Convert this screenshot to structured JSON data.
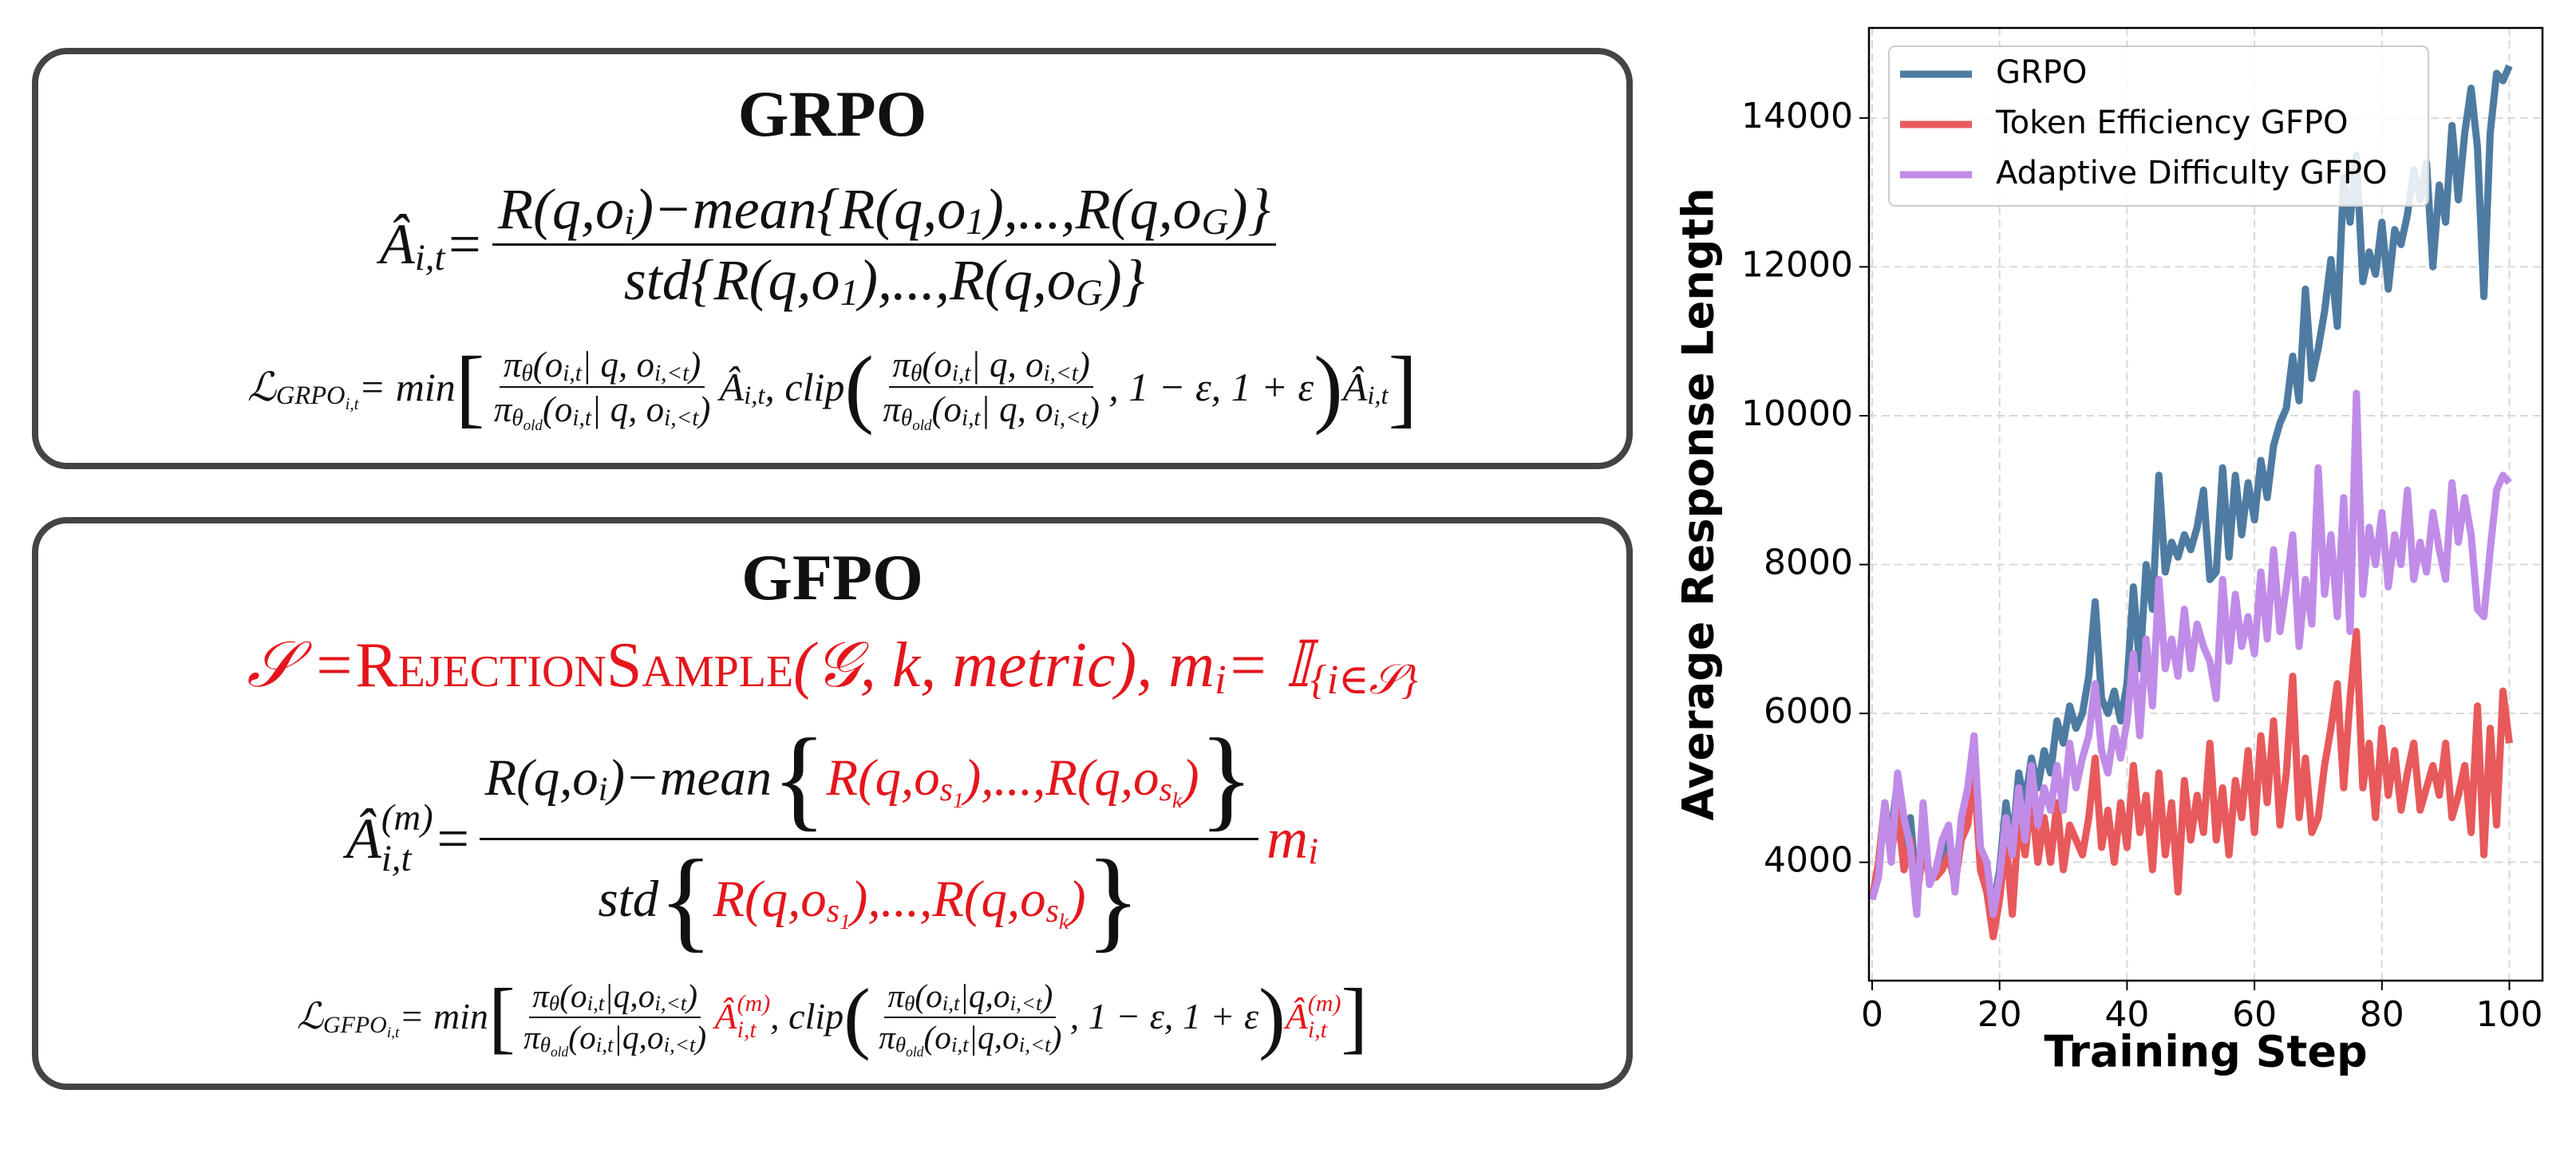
{
  "grpo_box": {
    "title": "GRPO",
    "equations": [
      [
        "Â",
        {
          "sub": [
            "i,t"
          ]
        },
        " = ",
        {
          "frac": {
            "num": [
              "R(q,o",
              {
                "sub": [
                  "i"
                ]
              },
              ")−mean{R(q,o",
              {
                "sub": [
                  "1"
                ]
              },
              "),...,R(q,o",
              {
                "sub": [
                  "G"
                ]
              },
              ")}"
            ],
            "den": [
              "std{R(q,o",
              {
                "sub": [
                  "1"
                ]
              },
              "),...,R(q,o",
              {
                "sub": [
                  "G"
                ]
              },
              ")}"
            ]
          }
        }
      ],
      [
        "ℒ",
        {
          "sub": [
            "GRPO",
            {
              "sub": [
                "i,t"
              ]
            }
          ]
        },
        " = min",
        {
          "big": "["
        },
        {
          "frac": {
            "num": [
              "π",
              {
                "sub": [
                  "θ"
                ]
              },
              "(o",
              {
                "sub": [
                  "i,t"
                ]
              },
              " | q, o",
              {
                "sub": [
                  "i,<t"
                ]
              },
              ")"
            ],
            "den": [
              "π",
              {
                "sub": [
                  "θ",
                  {
                    "sub": [
                      "old"
                    ]
                  }
                ]
              },
              "(o",
              {
                "sub": [
                  "i,t"
                ]
              },
              " | q, o",
              {
                "sub": [
                  "i,<t"
                ]
              },
              ")"
            ]
          }
        },
        " Â",
        {
          "sub": [
            "i,t"
          ]
        },
        ", clip",
        {
          "big": "("
        },
        {
          "frac": {
            "num": [
              "π",
              {
                "sub": [
                  "θ"
                ]
              },
              "(o",
              {
                "sub": [
                  "i,t"
                ]
              },
              " | q, o",
              {
                "sub": [
                  "i,<t"
                ]
              },
              ")"
            ],
            "den": [
              "π",
              {
                "sub": [
                  "θ",
                  {
                    "sub": [
                      "old"
                    ]
                  }
                ]
              },
              "(o",
              {
                "sub": [
                  "i,t"
                ]
              },
              " | q, o",
              {
                "sub": [
                  "i,<t"
                ]
              },
              ")"
            ]
          }
        },
        ", 1 − ε, 1 + ε",
        {
          "big": ")"
        },
        "Â",
        {
          "sub": [
            "i,t"
          ]
        },
        {
          "big": "]"
        }
      ]
    ]
  },
  "gfpo_box": {
    "title": "GFPO",
    "equations": [
      [
        {
          "color": "#e4161c",
          "tokens": [
            "𝒮 = ",
            {
              "smallcaps": "RejectionSample"
            },
            "(𝒢, k, metric),  m",
            {
              "sub": [
                "i"
              ]
            },
            " = 𝕀",
            {
              "sub": [
                "{i∈𝒮}"
              ]
            }
          ]
        }
      ],
      [
        "Â",
        {
          "sub": [
            "i,t"
          ],
          "sup": [
            "(m)"
          ]
        },
        " = ",
        {
          "frac": {
            "num": [
              "R(q,o",
              {
                "sub": [
                  "i"
                ]
              },
              ")−mean",
              {
                "big": "{"
              },
              {
                "color": "#e4161c",
                "tokens": [
                  "R(q,o",
                  {
                    "sub": [
                      "s",
                      {
                        "sub": [
                          "1"
                        ]
                      }
                    ]
                  },
                  "),...,R(q,o",
                  {
                    "sub": [
                      "s",
                      {
                        "sub": [
                          "k"
                        ]
                      }
                    ]
                  },
                  ")"
                ]
              },
              {
                "big": "}"
              }
            ],
            "den": [
              "std",
              {
                "big": "{"
              },
              {
                "color": "#e4161c",
                "tokens": [
                  "R(q,o",
                  {
                    "sub": [
                      "s",
                      {
                        "sub": [
                          "1"
                        ]
                      }
                    ]
                  },
                  "),...,R(q,o",
                  {
                    "sub": [
                      "s",
                      {
                        "sub": [
                          "k"
                        ]
                      }
                    ]
                  },
                  ")"
                ]
              },
              {
                "big": "}"
              }
            ]
          }
        },
        {
          "color": "#e4161c",
          "tokens": [
            "m",
            {
              "sub": [
                "i"
              ]
            }
          ]
        }
      ],
      [
        "ℒ",
        {
          "sub": [
            "GFPO",
            {
              "sub": [
                "i,t"
              ]
            }
          ]
        },
        " = min",
        {
          "big": "["
        },
        {
          "frac": {
            "num": [
              "π",
              {
                "sub": [
                  "θ"
                ]
              },
              "(o",
              {
                "sub": [
                  "i,t"
                ]
              },
              "|q,o",
              {
                "sub": [
                  "i,<t"
                ]
              },
              ")"
            ],
            "den": [
              "π",
              {
                "sub": [
                  "θ",
                  {
                    "sub": [
                      "old"
                    ]
                  }
                ]
              },
              "(o",
              {
                "sub": [
                  "i,t"
                ]
              },
              "|q,o",
              {
                "sub": [
                  "i,<t"
                ]
              },
              ")"
            ]
          }
        },
        {
          "color": "#e4161c",
          "tokens": [
            " Â",
            {
              "sub": [
                "i,t"
              ],
              "sup": [
                "(m)"
              ]
            }
          ]
        },
        ", clip",
        {
          "big": "("
        },
        {
          "frac": {
            "num": [
              "π",
              {
                "sub": [
                  "θ"
                ]
              },
              "(o",
              {
                "sub": [
                  "i,t"
                ]
              },
              "|q,o",
              {
                "sub": [
                  "i,<t"
                ]
              },
              ")"
            ],
            "den": [
              "π",
              {
                "sub": [
                  "θ",
                  {
                    "sub": [
                      "old"
                    ]
                  }
                ]
              },
              "(o",
              {
                "sub": [
                  "i,t"
                ]
              },
              "|q,o",
              {
                "sub": [
                  "i,<t"
                ]
              },
              ")"
            ]
          }
        },
        ", 1 − ε, 1 + ε",
        {
          "big": ")"
        },
        {
          "color": "#e4161c",
          "tokens": [
            "Â",
            {
              "sub": [
                "i,t"
              ],
              "sup": [
                "(m)"
              ]
            }
          ]
        },
        {
          "big": "]"
        }
      ]
    ]
  },
  "chart_data": {
    "type": "line",
    "x_label": "Training Step",
    "y_label": "Average Response Length",
    "xlim": [
      -0.5,
      105.2
    ],
    "ylim": [
      2410,
      15210
    ],
    "xticks": [
      0,
      20,
      40,
      60,
      80,
      100
    ],
    "yticks": [
      4000,
      6000,
      8000,
      10000,
      12000,
      14000
    ],
    "grid": true,
    "legend": "upper left",
    "x": [
      0,
      1,
      2,
      3,
      4,
      5,
      6,
      7,
      8,
      9,
      10,
      11,
      12,
      13,
      14,
      15,
      16,
      17,
      18,
      19,
      20,
      21,
      22,
      23,
      24,
      25,
      26,
      27,
      28,
      29,
      30,
      31,
      32,
      33,
      34,
      35,
      36,
      37,
      38,
      39,
      40,
      41,
      42,
      43,
      44,
      45,
      46,
      47,
      48,
      49,
      50,
      51,
      52,
      53,
      54,
      55,
      56,
      57,
      58,
      59,
      60,
      61,
      62,
      63,
      64,
      65,
      66,
      67,
      68,
      69,
      70,
      71,
      72,
      73,
      74,
      75,
      76,
      77,
      78,
      79,
      80,
      81,
      82,
      83,
      84,
      85,
      86,
      87,
      88,
      89,
      90,
      91,
      92,
      93,
      94,
      95,
      96,
      97,
      98,
      99,
      100
    ],
    "series": [
      {
        "name": "GRPO",
        "color": "#4e7ba1",
        "values": [
          3500,
          3900,
          4700,
          4400,
          5100,
          4000,
          4600,
          3600,
          4400,
          3800,
          3900,
          4000,
          4300,
          3800,
          4500,
          4700,
          5500,
          4100,
          3800,
          3400,
          3900,
          4800,
          4200,
          5200,
          4800,
          5400,
          5000,
          5500,
          5200,
          5900,
          5600,
          6100,
          5800,
          6000,
          6500,
          7500,
          6200,
          6000,
          6300,
          5900,
          6400,
          7700,
          6600,
          8000,
          7400,
          9200,
          7900,
          8300,
          8100,
          8400,
          8200,
          8500,
          9000,
          7800,
          7900,
          9300,
          8100,
          9200,
          8400,
          9100,
          8600,
          9400,
          8900,
          9600,
          9900,
          10100,
          10800,
          10200,
          11700,
          10500,
          10900,
          11400,
          12100,
          11200,
          13200,
          12600,
          13500,
          11800,
          12200,
          11900,
          12600,
          11700,
          12500,
          12300,
          12700,
          13300,
          12900,
          13400,
          12000,
          13100,
          12600,
          13900,
          12900,
          13800,
          14400,
          13600,
          11600,
          13800,
          14600,
          14500,
          14700
        ]
      },
      {
        "name": "Token Efficiency GFPO",
        "color": "#e8595b",
        "values": [
          3500,
          4000,
          4800,
          4100,
          4700,
          3900,
          4300,
          3500,
          4200,
          3800,
          3800,
          3900,
          4100,
          3700,
          4300,
          4500,
          5200,
          3900,
          3600,
          3000,
          3500,
          4300,
          3300,
          4600,
          4100,
          4900,
          4000,
          4600,
          4000,
          4800,
          3900,
          4500,
          4300,
          4100,
          4600,
          5400,
          4200,
          4700,
          4000,
          4800,
          4200,
          5300,
          4400,
          4900,
          3900,
          5200,
          4100,
          4800,
          3600,
          5100,
          4300,
          4900,
          4400,
          5600,
          4300,
          5000,
          4100,
          5100,
          4600,
          5500,
          4400,
          5700,
          4800,
          5900,
          4500,
          5200,
          6500,
          4600,
          5400,
          4400,
          4600,
          5300,
          5800,
          6400,
          5000,
          6200,
          7100,
          5000,
          5600,
          4600,
          5800,
          4900,
          5500,
          4700,
          5200,
          5600,
          4700,
          5000,
          5300,
          4900,
          5600,
          4600,
          4900,
          5300,
          4400,
          6100,
          4100,
          5800,
          4500,
          6300,
          5600
        ]
      },
      {
        "name": "Adaptive Difficulty GFPO",
        "color": "#c08ce8",
        "values": [
          3500,
          3800,
          4800,
          4000,
          5200,
          4600,
          4200,
          3300,
          4800,
          3700,
          3900,
          4300,
          4500,
          3600,
          4600,
          5000,
          5700,
          4200,
          4000,
          3300,
          3800,
          4600,
          4100,
          5000,
          4300,
          5300,
          4500,
          5000,
          4700,
          5300,
          4700,
          5600,
          5000,
          5400,
          5700,
          6400,
          5500,
          5200,
          5800,
          5400,
          5900,
          6800,
          5700,
          7000,
          6100,
          7800,
          6600,
          7000,
          6500,
          7400,
          6600,
          7200,
          6900,
          6700,
          6200,
          7800,
          6700,
          7600,
          6900,
          7300,
          6800,
          7900,
          7000,
          8200,
          7100,
          7700,
          8400,
          6900,
          7800,
          7200,
          9300,
          7600,
          8400,
          7300,
          8900,
          7100,
          10300,
          7600,
          8500,
          8000,
          8700,
          7700,
          8400,
          8000,
          9000,
          7800,
          8300,
          7900,
          8700,
          8200,
          7800,
          9100,
          8300,
          8900,
          8400,
          7400,
          7300,
          8200,
          9000,
          9200,
          9100
        ]
      }
    ]
  }
}
